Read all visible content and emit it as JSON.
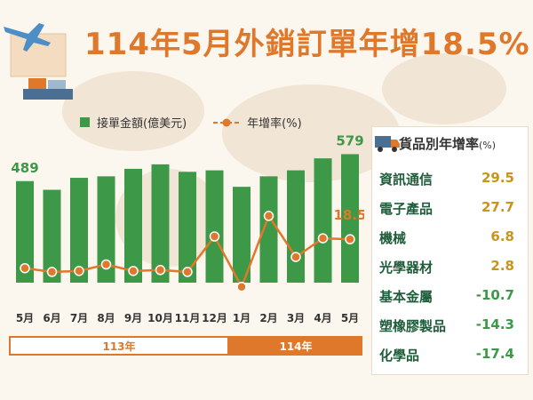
{
  "title": "114年5月外銷訂單年增18.5%",
  "legend": {
    "bar_label": "接單金額(億美元)",
    "line_label": "年增率(%)"
  },
  "year_groups": [
    {
      "label": "113年"
    },
    {
      "label": "114年"
    }
  ],
  "colors": {
    "bar": "#3d9848",
    "line": "#e0782b",
    "positive": "#c8941a",
    "negative": "#3d9848"
  },
  "panel": {
    "title": "貨品別年增率",
    "unit": "(%)",
    "icon": "truck-icon",
    "rows": [
      {
        "name": "資訊通信",
        "value": "29.5",
        "sign": "pos"
      },
      {
        "name": "電子產品",
        "value": "27.7",
        "sign": "pos"
      },
      {
        "name": "機械",
        "value": "6.8",
        "sign": "pos"
      },
      {
        "name": "光學器材",
        "value": "2.8",
        "sign": "pos"
      },
      {
        "name": "基本金屬",
        "value": "-10.7",
        "sign": "neg"
      },
      {
        "name": "塑橡膠製品",
        "value": "-14.3",
        "sign": "neg"
      },
      {
        "name": "化學品",
        "value": "-17.4",
        "sign": "neg"
      }
    ]
  },
  "chart_data": {
    "type": "bar",
    "categories": [
      "5月",
      "6月",
      "7月",
      "8月",
      "9月",
      "10月",
      "11月",
      "12月",
      "1月",
      "2月",
      "3月",
      "4月",
      "5月"
    ],
    "series": [
      {
        "name": "接單金額(億美元)",
        "type": "bar",
        "values": [
          489,
          460,
          500,
          505,
          530,
          545,
          520,
          525,
          470,
          505,
          525,
          565,
          579
        ]
      },
      {
        "name": "年增率(%)",
        "type": "line",
        "values": [
          3.0,
          1.0,
          1.5,
          5.0,
          1.5,
          2.0,
          1.0,
          20.0,
          -7.0,
          31.0,
          9.0,
          19.0,
          18.5
        ]
      }
    ],
    "data_labels": [
      {
        "index": 0,
        "text": "489"
      },
      {
        "index": 12,
        "text": "579"
      },
      {
        "index": 12,
        "text": "18.5",
        "series": "line"
      }
    ]
  }
}
